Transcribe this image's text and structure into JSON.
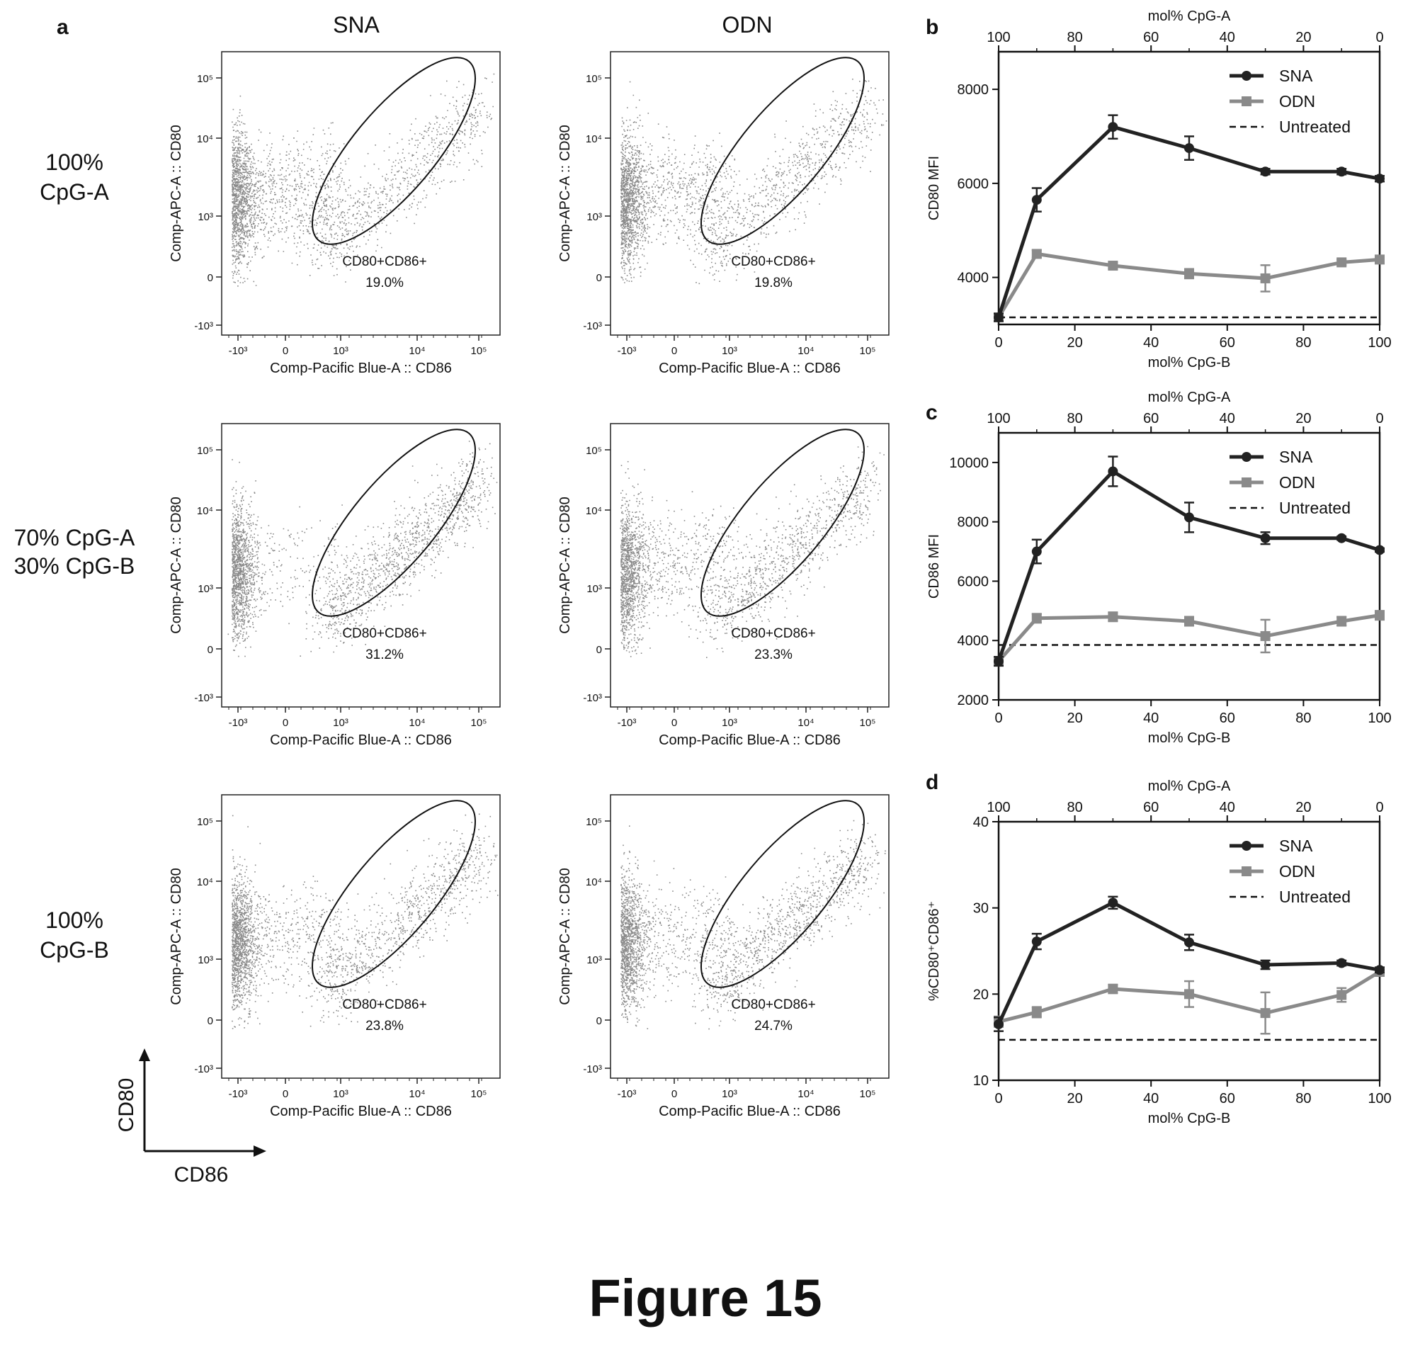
{
  "figure": {
    "title": "Figure 15",
    "panel_letters": {
      "a": "a",
      "b": "b",
      "c": "c",
      "d": "d"
    },
    "columns": [
      "SNA",
      "ODN"
    ],
    "rows": [
      {
        "line1": "100%",
        "line2": "CpG-A"
      },
      {
        "line1": "70% CpG-A",
        "line2": "30% CpG-B"
      },
      {
        "line1": "100%",
        "line2": "CpG-B"
      }
    ],
    "axis_key": {
      "y": "CD80",
      "x": "CD86"
    },
    "flow": {
      "xlabel": "Comp-Pacific Blue-A :: CD86",
      "ylabel": "Comp-APC-A :: CD80",
      "xticks": [
        "-10³",
        "0",
        "10³",
        "10⁴",
        "10⁵"
      ],
      "yticks": [
        "10⁵",
        "10⁴",
        "10³",
        "0",
        "-10³"
      ],
      "gate_label": "CD80+CD86+"
    }
  },
  "chart_data": [
    {
      "type": "scatter",
      "panel": "a",
      "xlabel": "Comp-Pacific Blue-A :: CD86",
      "ylabel": "Comp-APC-A :: CD80",
      "gate": "CD80+CD86+",
      "plots": [
        {
          "row": "100% CpG-A",
          "column": "SNA",
          "gate_percent": "19.0%"
        },
        {
          "row": "100% CpG-A",
          "column": "ODN",
          "gate_percent": "19.8%"
        },
        {
          "row": "70% CpG-A 30% CpG-B",
          "column": "SNA",
          "gate_percent": "31.2%"
        },
        {
          "row": "70% CpG-A 30% CpG-B",
          "column": "ODN",
          "gate_percent": "23.3%"
        },
        {
          "row": "100% CpG-B",
          "column": "SNA",
          "gate_percent": "23.8%"
        },
        {
          "row": "100% CpG-B",
          "column": "ODN",
          "gate_percent": "24.7%"
        }
      ]
    },
    {
      "type": "line",
      "panel": "b",
      "xlabel": "mol% CpG-B",
      "top_xlabel": "mol% CpG-A",
      "ylabel": "CD80 MFI",
      "xlim": [
        0,
        100
      ],
      "ylim": [
        3000,
        8800
      ],
      "xticks": [
        0,
        20,
        40,
        60,
        80,
        100
      ],
      "top_xticks": [
        100,
        80,
        60,
        40,
        20,
        0
      ],
      "yticks": [
        4000,
        6000,
        8000
      ],
      "x": [
        0,
        10,
        30,
        50,
        70,
        90,
        100
      ],
      "series": [
        {
          "name": "SNA",
          "color": "#222222",
          "values": [
            3150,
            5650,
            7200,
            6750,
            6250,
            6250,
            6100
          ],
          "errors": [
            80,
            250,
            250,
            250,
            60,
            60,
            60
          ]
        },
        {
          "name": "ODN",
          "color": "#8a8a8a",
          "values": [
            3150,
            4500,
            4250,
            4080,
            3980,
            4320,
            4380
          ],
          "errors": [
            80,
            80,
            60,
            100,
            280,
            60,
            80
          ]
        }
      ],
      "reference": {
        "name": "Untreated",
        "value": 3150
      },
      "legend": "top-right"
    },
    {
      "type": "line",
      "panel": "c",
      "xlabel": "mol% CpG-B",
      "top_xlabel": "mol% CpG-A",
      "ylabel": "CD86 MFI",
      "xlim": [
        0,
        100
      ],
      "ylim": [
        2000,
        11000
      ],
      "xticks": [
        0,
        20,
        40,
        60,
        80,
        100
      ],
      "top_xticks": [
        100,
        80,
        60,
        40,
        20,
        0
      ],
      "yticks": [
        2000,
        4000,
        6000,
        8000,
        10000
      ],
      "x": [
        0,
        10,
        30,
        50,
        70,
        90,
        100
      ],
      "series": [
        {
          "name": "SNA",
          "color": "#222222",
          "values": [
            3300,
            7000,
            9700,
            8150,
            7450,
            7450,
            7050
          ],
          "errors": [
            150,
            400,
            500,
            500,
            200,
            60,
            60
          ]
        },
        {
          "name": "ODN",
          "color": "#8a8a8a",
          "values": [
            3300,
            4750,
            4800,
            4650,
            4150,
            4650,
            4850
          ],
          "errors": [
            150,
            150,
            150,
            150,
            550,
            150,
            150
          ]
        }
      ],
      "reference": {
        "name": "Untreated",
        "value": 3850
      },
      "legend": "top-right"
    },
    {
      "type": "line",
      "panel": "d",
      "xlabel": "mol% CpG-B",
      "top_xlabel": "mol% CpG-A",
      "ylabel": "%CD80⁺CD86⁺",
      "xlim": [
        0,
        100
      ],
      "ylim": [
        10,
        40
      ],
      "xticks": [
        0,
        20,
        40,
        60,
        80,
        100
      ],
      "top_xticks": [
        100,
        80,
        60,
        40,
        20,
        0
      ],
      "yticks": [
        10,
        20,
        30,
        40
      ],
      "x": [
        0,
        10,
        30,
        50,
        70,
        90,
        100
      ],
      "series": [
        {
          "name": "SNA",
          "color": "#222222",
          "values": [
            16.5,
            26.1,
            30.6,
            26.0,
            23.4,
            23.6,
            22.8
          ],
          "errors": [
            0.8,
            0.9,
            0.7,
            0.9,
            0.5,
            0.3,
            0.3
          ]
        },
        {
          "name": "ODN",
          "color": "#8a8a8a",
          "values": [
            16.8,
            17.9,
            20.6,
            20.0,
            17.8,
            19.9,
            22.6
          ],
          "errors": [
            0.6,
            0.6,
            0.5,
            1.5,
            2.4,
            0.8,
            0.5
          ]
        }
      ],
      "reference": {
        "name": "Untreated",
        "value": 14.7
      },
      "legend": "top-right"
    }
  ]
}
